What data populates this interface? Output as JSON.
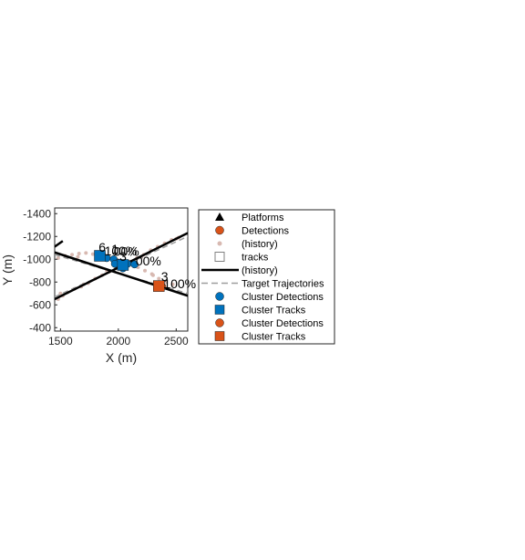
{
  "chart_data": {
    "type": "scatter",
    "xlabel": "X (m)",
    "ylabel": "Y (m)",
    "xlim": [
      1450,
      2600
    ],
    "ylim": [
      -1450,
      -370
    ],
    "y_reversed": true,
    "xticks": [
      1500,
      2000,
      2500
    ],
    "xtick_labels": [
      "1500",
      "2000",
      "2500"
    ],
    "yticks": [
      -1400,
      -1200,
      -1000,
      -800,
      -600,
      -400
    ],
    "ytick_labels": [
      "-1400",
      "-1200",
      "-1000",
      "-800",
      "-600",
      "-400"
    ],
    "legend_position": "right",
    "series": [
      {
        "name": "Platforms",
        "marker": "triangle",
        "color": "#000000",
        "points": []
      },
      {
        "name": "Detections",
        "marker": "circle",
        "color": "#D95319",
        "points": []
      },
      {
        "name": "(history)",
        "marker": "circle-small",
        "color": "#D8B9B1",
        "points": [
          [
            1480,
            -1010
          ],
          [
            1540,
            -1030
          ],
          [
            1600,
            -1040
          ],
          [
            1660,
            -1050
          ],
          [
            1720,
            -1055
          ],
          [
            1780,
            -1045
          ],
          [
            1830,
            -1040
          ],
          [
            1880,
            -1030
          ],
          [
            1930,
            -1010
          ],
          [
            1990,
            -995
          ],
          [
            2050,
            -985
          ],
          [
            2110,
            -960
          ],
          [
            2170,
            -930
          ],
          [
            2230,
            -900
          ],
          [
            2290,
            -870
          ],
          [
            2350,
            -830
          ],
          [
            2410,
            -800
          ],
          [
            2470,
            -780
          ],
          [
            1480,
            -650
          ],
          [
            1520,
            -680
          ],
          [
            1560,
            -710
          ],
          [
            1620,
            -740
          ],
          [
            1680,
            -760
          ],
          [
            1740,
            -790
          ],
          [
            1800,
            -830
          ],
          [
            1860,
            -860
          ],
          [
            1920,
            -890
          ],
          [
            1980,
            -920
          ],
          [
            2040,
            -950
          ],
          [
            2100,
            -980
          ],
          [
            2160,
            -1010
          ],
          [
            2220,
            -1040
          ],
          [
            2280,
            -1080
          ],
          [
            2340,
            -1110
          ],
          [
            2400,
            -1140
          ],
          [
            2460,
            -1170
          ],
          [
            2520,
            -1190
          ],
          [
            1500,
            -700
          ],
          [
            1700,
            -780
          ],
          [
            1900,
            -900
          ],
          [
            2200,
            -1020
          ],
          [
            2500,
            -1180
          ],
          [
            1650,
            -1020
          ],
          [
            1950,
            -1000
          ],
          [
            2300,
            -860
          ]
        ]
      },
      {
        "name": "tracks",
        "marker": "square-open",
        "color": "#808080",
        "points": []
      },
      {
        "name": "(history)",
        "marker": "line",
        "color": "#000000",
        "points": []
      },
      {
        "name": "Target Trajectories",
        "marker": "dashed-line",
        "color": "#9E9E9E",
        "points": []
      },
      {
        "name": "Cluster Detections",
        "marker": "circle",
        "color": "#0072BD",
        "points": [
          [
            1860,
            -1040
          ],
          [
            1900,
            -1010
          ],
          [
            1960,
            -1000
          ],
          [
            2000,
            -970
          ],
          [
            2080,
            -960
          ],
          [
            2140,
            -955
          ],
          [
            2040,
            -920
          ],
          [
            1970,
            -960
          ]
        ]
      },
      {
        "name": "Cluster Tracks",
        "marker": "square",
        "color": "#0072BD",
        "points": [
          [
            1840,
            -1030
          ],
          [
            2040,
            -950
          ]
        ]
      },
      {
        "name": "Cluster Detections",
        "marker": "circle",
        "color": "#D95319",
        "points": [
          [
            2350,
            -770
          ],
          [
            2380,
            -760
          ]
        ]
      },
      {
        "name": "Cluster Tracks",
        "marker": "square",
        "color": "#D95319",
        "points": [
          [
            2350,
            -765
          ]
        ]
      }
    ],
    "trajectories_solid": [
      [
        [
          1450,
          -1060
        ],
        [
          2600,
          -680
        ]
      ],
      [
        [
          1450,
          -650
        ],
        [
          2600,
          -1230
        ]
      ],
      [
        [
          1450,
          -1110
        ],
        [
          1520,
          -1160
        ]
      ]
    ],
    "trajectories_dashed": [
      [
        [
          1450,
          -1040
        ],
        [
          2600,
          -700
        ]
      ],
      [
        [
          1450,
          -670
        ],
        [
          2600,
          -1200
        ]
      ]
    ],
    "annotations": [
      {
        "text": "6",
        "x": 1830,
        "y": -1065
      },
      {
        "text": "100%",
        "x": 1880,
        "y": -1035
      },
      {
        "text": "1",
        "x": 1940,
        "y": -1050
      },
      {
        "text": "00%",
        "x": 1960,
        "y": -1030
      },
      {
        "text": "3",
        "x": 2010,
        "y": -985
      },
      {
        "text": "00%",
        "x": 2150,
        "y": -945
      },
      {
        "text": "3",
        "x": 2370,
        "y": -810
      },
      {
        "text": "100%",
        "x": 2390,
        "y": -745
      }
    ]
  }
}
